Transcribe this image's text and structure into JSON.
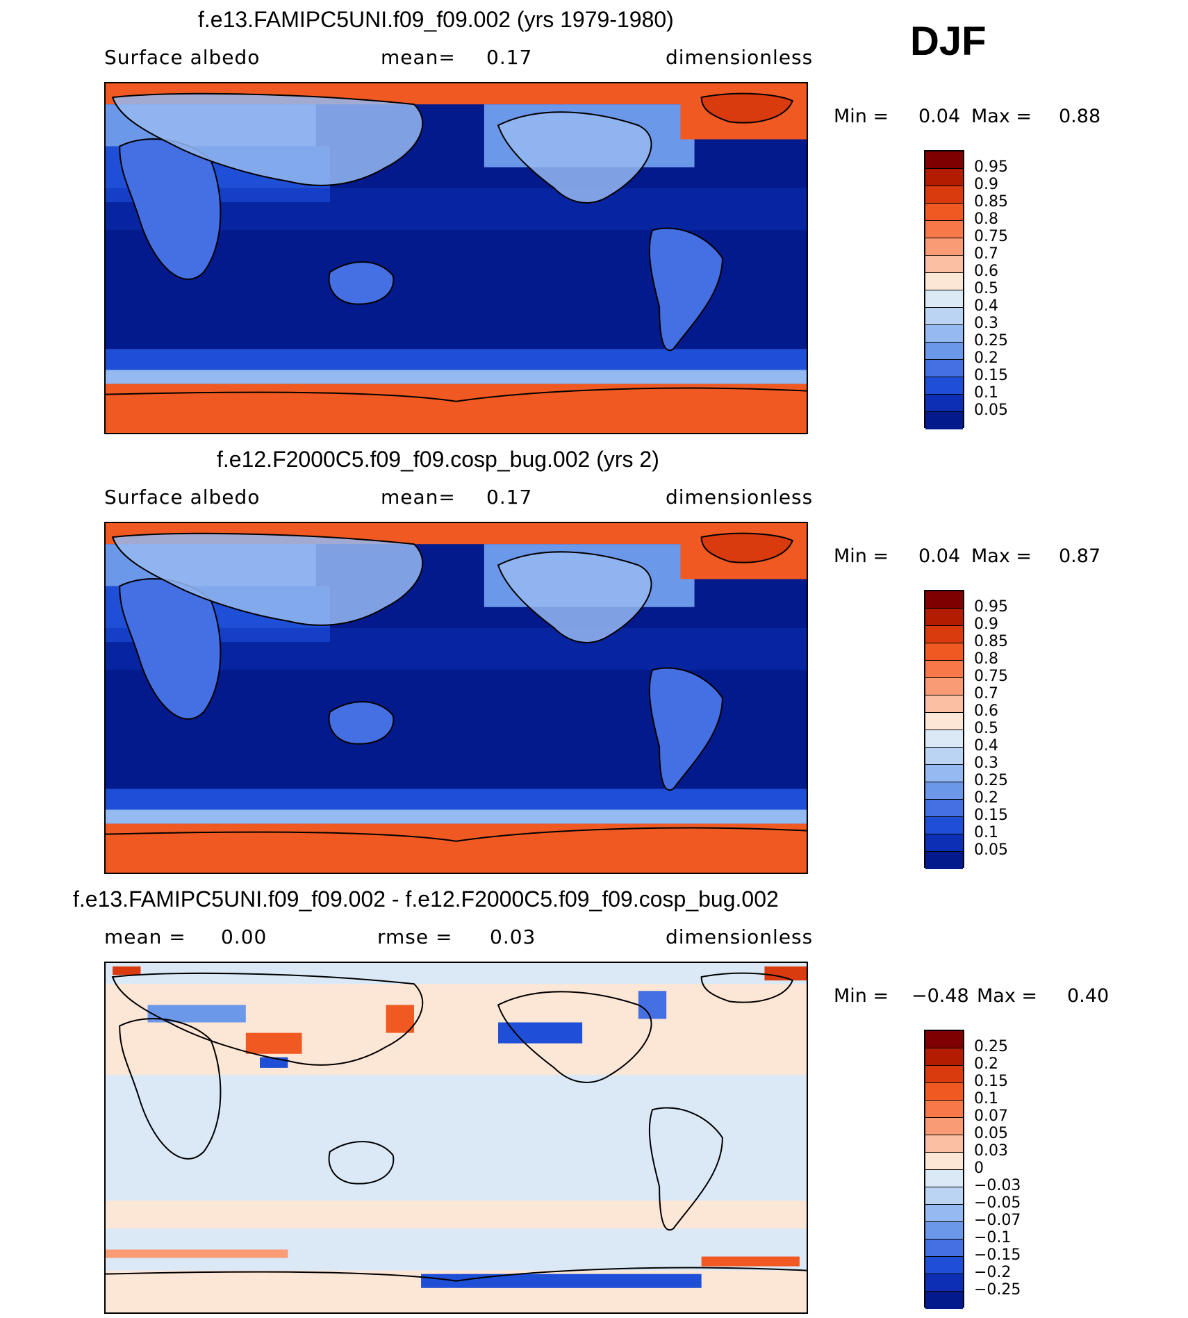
{
  "season": "DJF",
  "panels": [
    {
      "title": "f.e13.FAMIPC5UNI.f09_f09.002 (yrs 1979-1980)",
      "left_label": "Surface albedo",
      "mid_label": "mean=",
      "mid_value": "0.17",
      "right_label": "dimensionless",
      "min_label": "Min =",
      "min_value": "0.04",
      "max_label": "Max =",
      "max_value": "0.88"
    },
    {
      "title": "f.e12.F2000C5.f09_f09.cosp_bug.002 (yrs 2)",
      "left_label": "Surface albedo",
      "mid_label": "mean=",
      "mid_value": "0.17",
      "right_label": "dimensionless",
      "min_label": "Min =",
      "min_value": "0.04",
      "max_label": "Max =",
      "max_value": "0.87"
    },
    {
      "title": "f.e13.FAMIPC5UNI.f09_f09.002 - f.e12.F2000C5.f09_f09.cosp_bug.002",
      "left_label": "mean =",
      "left_value": "0.00",
      "mid_label": "rmse =",
      "mid_value": "0.03",
      "right_label": "dimensionless",
      "min_label": "Min =",
      "min_value": "−0.48",
      "max_label": "Max =",
      "max_value": "0.40"
    }
  ],
  "colorbar_abs": {
    "labels": [
      "0.95",
      "0.9",
      "0.85",
      "0.8",
      "0.75",
      "0.7",
      "0.6",
      "0.5",
      "0.4",
      "0.3",
      "0.25",
      "0.2",
      "0.15",
      "0.1",
      "0.05"
    ],
    "colors": [
      "#7f0000",
      "#b31c00",
      "#d93b0f",
      "#f05a22",
      "#f7794a",
      "#f99b74",
      "#fbbfa3",
      "#fce6d6",
      "#dbe9f7",
      "#bcd4f4",
      "#95b9f1",
      "#6c98ea",
      "#4470e4",
      "#1f4fd6",
      "#0c2fb5",
      "#031a8c"
    ]
  },
  "colorbar_diff": {
    "labels": [
      "0.25",
      "0.2",
      "0.15",
      "0.1",
      "0.07",
      "0.05",
      "0.03",
      "0",
      "−0.03",
      "−0.05",
      "−0.07",
      "−0.1",
      "−0.15",
      "−0.2",
      "−0.25"
    ],
    "colors": [
      "#7f0000",
      "#b31c00",
      "#d93b0f",
      "#f05a22",
      "#f7794a",
      "#f99b74",
      "#fbbfa3",
      "#fce6d6",
      "#dbe9f7",
      "#bcd4f4",
      "#95b9f1",
      "#6c98ea",
      "#4470e4",
      "#1f4fd6",
      "#0c2fb5",
      "#031a8c"
    ]
  }
}
